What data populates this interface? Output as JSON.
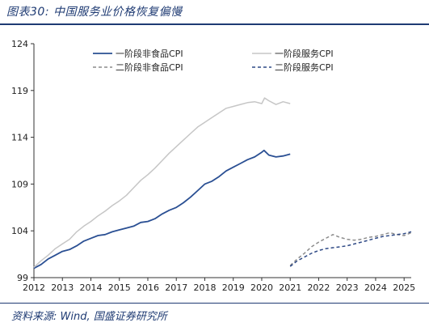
{
  "header": {
    "title": "图表30:  中国服务业价格恢复偏慢"
  },
  "footer": {
    "source": "资料来源:  Wind,  国盛证券研究所"
  },
  "colors": {
    "dark_blue": "#2a4f93",
    "light_gray": "#c6c6c6",
    "gray_dashed": "#8c8c8c",
    "navy_dashed": "#2f4a86",
    "axis": "#333333"
  },
  "chart_data": {
    "type": "line",
    "title": "",
    "xlabel": "",
    "ylabel": "",
    "ylim": [
      99,
      124
    ],
    "xlim": [
      2012,
      2025.25
    ],
    "yticks": [
      99,
      104,
      109,
      114,
      119,
      124
    ],
    "xticks": [
      "2012",
      "2013",
      "2014",
      "2015",
      "2016",
      "2017",
      "2018",
      "2019",
      "2020",
      "2021",
      "2022",
      "2023",
      "2024",
      "2025"
    ],
    "grid": false,
    "legend": "top",
    "series": [
      {
        "name": "一阶段非食品CPI",
        "style": "solid",
        "color": "#2a4f93",
        "x": [
          2012.0,
          2012.25,
          2012.5,
          2012.75,
          2013.0,
          2013.25,
          2013.5,
          2013.75,
          2014.0,
          2014.25,
          2014.5,
          2014.75,
          2015.0,
          2015.25,
          2015.5,
          2015.75,
          2016.0,
          2016.25,
          2016.5,
          2016.75,
          2017.0,
          2017.25,
          2017.5,
          2017.75,
          2018.0,
          2018.25,
          2018.5,
          2018.75,
          2019.0,
          2019.25,
          2019.5,
          2019.75,
          2020.0,
          2020.08,
          2020.25,
          2020.5,
          2020.75,
          2021.0
        ],
        "y": [
          100.0,
          100.4,
          101.0,
          101.4,
          101.8,
          102.0,
          102.4,
          102.9,
          103.2,
          103.5,
          103.6,
          103.9,
          104.1,
          104.3,
          104.5,
          104.9,
          105.0,
          105.3,
          105.8,
          106.2,
          106.5,
          107.0,
          107.6,
          108.3,
          109.0,
          109.3,
          109.8,
          110.4,
          110.8,
          111.2,
          111.6,
          111.9,
          112.4,
          112.6,
          112.1,
          111.9,
          112.0,
          112.2
        ]
      },
      {
        "name": "一阶段服务CPI",
        "style": "solid",
        "color": "#c6c6c6",
        "x": [
          2012.0,
          2012.25,
          2012.5,
          2012.75,
          2013.0,
          2013.25,
          2013.5,
          2013.75,
          2014.0,
          2014.25,
          2014.5,
          2014.75,
          2015.0,
          2015.25,
          2015.5,
          2015.75,
          2016.0,
          2016.25,
          2016.5,
          2016.75,
          2017.0,
          2017.25,
          2017.5,
          2017.75,
          2018.0,
          2018.25,
          2018.5,
          2018.75,
          2019.0,
          2019.25,
          2019.5,
          2019.75,
          2020.0,
          2020.1,
          2020.25,
          2020.5,
          2020.75,
          2021.0
        ],
        "y": [
          100.1,
          100.8,
          101.4,
          102.1,
          102.6,
          103.1,
          103.9,
          104.5,
          105.0,
          105.6,
          106.1,
          106.7,
          107.2,
          107.8,
          108.6,
          109.4,
          110.0,
          110.7,
          111.5,
          112.3,
          113.0,
          113.7,
          114.4,
          115.1,
          115.6,
          116.1,
          116.6,
          117.1,
          117.3,
          117.5,
          117.7,
          117.8,
          117.6,
          118.2,
          117.9,
          117.5,
          117.8,
          117.6
        ]
      },
      {
        "name": "二阶段非食品CPI",
        "style": "dashed",
        "color": "#8c8c8c",
        "x": [
          2021.0,
          2021.25,
          2021.5,
          2021.75,
          2022.0,
          2022.25,
          2022.5,
          2022.75,
          2023.0,
          2023.25,
          2023.5,
          2023.75,
          2024.0,
          2024.25,
          2024.5,
          2024.75,
          2025.0,
          2025.25
        ],
        "y": [
          100.3,
          101.0,
          101.6,
          102.3,
          102.8,
          103.2,
          103.6,
          103.3,
          103.1,
          103.0,
          103.1,
          103.3,
          103.4,
          103.6,
          103.8,
          103.6,
          103.5,
          103.8
        ]
      },
      {
        "name": "二阶段服务CPI",
        "style": "dashed",
        "color": "#2f4a86",
        "x": [
          2021.0,
          2021.25,
          2021.5,
          2021.75,
          2022.0,
          2022.25,
          2022.5,
          2022.75,
          2023.0,
          2023.25,
          2023.5,
          2023.75,
          2024.0,
          2024.25,
          2024.5,
          2024.75,
          2025.0,
          2025.25
        ],
        "y": [
          100.2,
          100.8,
          101.2,
          101.6,
          101.9,
          102.1,
          102.2,
          102.3,
          102.4,
          102.6,
          102.8,
          103.0,
          103.2,
          103.4,
          103.5,
          103.6,
          103.7,
          103.9
        ]
      }
    ]
  }
}
